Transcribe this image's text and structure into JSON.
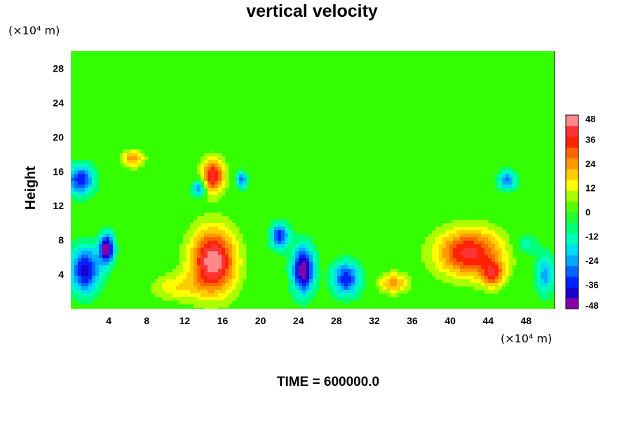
{
  "chart_data": {
    "type": "heatmap",
    "title": "vertical velocity",
    "ylabel": "Height",
    "y_unit_label": "(×10⁴ m)",
    "x_unit_label": "(×10⁴ m)",
    "footer": "TIME = 600000.0",
    "xlim": [
      0,
      51
    ],
    "ylim": [
      0,
      30
    ],
    "x_ticks": [
      4,
      8,
      12,
      16,
      20,
      24,
      28,
      32,
      36,
      40,
      44,
      48
    ],
    "y_ticks": [
      4,
      8,
      12,
      16,
      20,
      24,
      28
    ],
    "colorbar": {
      "min": -48,
      "max": 48,
      "ticks": [
        48,
        36,
        24,
        12,
        0,
        -12,
        -24,
        -36,
        -48
      ],
      "colors": [
        "#8800aa",
        "#1a00cc",
        "#0022ff",
        "#0066ff",
        "#00aaff",
        "#00ddee",
        "#00ffbb",
        "#00ff77",
        "#22ff33",
        "#55ff00",
        "#aaff00",
        "#ffff00",
        "#ffcc00",
        "#ff9900",
        "#ff6600",
        "#ff2200",
        "#ff3333",
        "#ff8888"
      ]
    },
    "background_value": 0,
    "features": [
      {
        "x": 15,
        "y": 5.5,
        "rx": 2.4,
        "ry": 3.8,
        "value": 48
      },
      {
        "x": 15,
        "y": 15.5,
        "rx": 1.2,
        "ry": 2.0,
        "value": 40
      },
      {
        "x": 6.5,
        "y": 17.5,
        "rx": 1.2,
        "ry": 1.0,
        "value": 24
      },
      {
        "x": 42,
        "y": 6.5,
        "rx": 3.5,
        "ry": 2.8,
        "value": 40
      },
      {
        "x": 44.5,
        "y": 4.0,
        "rx": 1.2,
        "ry": 1.5,
        "value": 28
      },
      {
        "x": 34,
        "y": 3.0,
        "rx": 1.5,
        "ry": 1.2,
        "value": 24
      },
      {
        "x": 11,
        "y": 2.5,
        "rx": 2.5,
        "ry": 1.6,
        "value": 14
      },
      {
        "x": 1.5,
        "y": 4.5,
        "rx": 1.6,
        "ry": 2.8,
        "value": -40
      },
      {
        "x": 3.8,
        "y": 7.0,
        "rx": 0.8,
        "ry": 1.8,
        "value": -48
      },
      {
        "x": 1.0,
        "y": 15.0,
        "rx": 1.5,
        "ry": 1.8,
        "value": -36
      },
      {
        "x": 13.5,
        "y": 14.0,
        "rx": 0.7,
        "ry": 1.0,
        "value": -30
      },
      {
        "x": 18,
        "y": 15.0,
        "rx": 0.6,
        "ry": 1.0,
        "value": -30
      },
      {
        "x": 22,
        "y": 8.5,
        "rx": 1.0,
        "ry": 1.5,
        "value": -36
      },
      {
        "x": 24.5,
        "y": 4.5,
        "rx": 1.2,
        "ry": 2.8,
        "value": -48
      },
      {
        "x": 29,
        "y": 3.5,
        "rx": 1.5,
        "ry": 2.0,
        "value": -36
      },
      {
        "x": 46,
        "y": 15.0,
        "rx": 1.0,
        "ry": 1.2,
        "value": -28
      },
      {
        "x": 50,
        "y": 4.0,
        "rx": 1.0,
        "ry": 2.5,
        "value": -24
      },
      {
        "x": 48,
        "y": 7.5,
        "rx": 1.2,
        "ry": 1.2,
        "value": -14
      }
    ]
  }
}
